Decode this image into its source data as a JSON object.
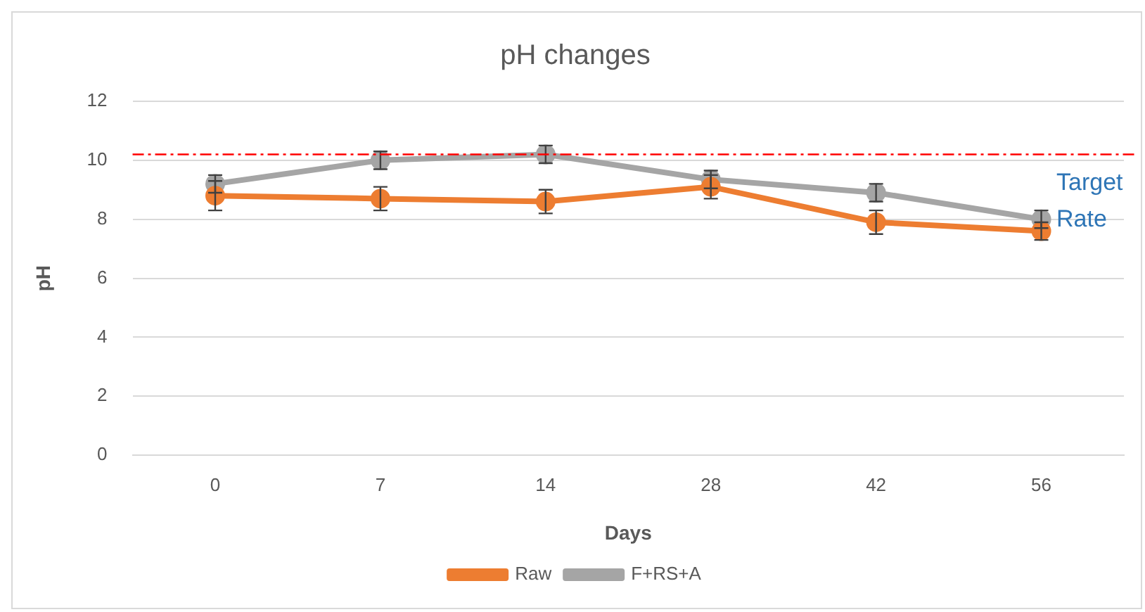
{
  "chart_data": {
    "type": "line",
    "title": "pH changes",
    "xlabel": "Days",
    "ylabel": "pH",
    "categories": [
      "0",
      "7",
      "14",
      "28",
      "42",
      "56"
    ],
    "series": [
      {
        "name": "Raw",
        "color": "#ed7d31",
        "values": [
          8.8,
          8.7,
          8.6,
          9.1,
          7.9,
          7.6
        ],
        "errors": [
          0.5,
          0.4,
          0.4,
          0.4,
          0.4,
          0.3
        ]
      },
      {
        "name": "F+RS+A",
        "color": "#a5a5a5",
        "values": [
          9.2,
          10.0,
          10.2,
          9.35,
          8.9,
          8.0
        ],
        "errors": [
          0.3,
          0.3,
          0.3,
          0.3,
          0.3,
          0.3
        ]
      }
    ],
    "ylim": [
      0,
      12
    ],
    "yticks": [
      0,
      2,
      4,
      6,
      8,
      10,
      12
    ],
    "grid": "y",
    "legend": "bottom",
    "marker": "circle",
    "line_style": "solid",
    "ref_lines": [
      {
        "axis": "y",
        "value": 10.2,
        "label": "Target Rate",
        "color": "#ff0000",
        "line_style": "dashed"
      }
    ]
  }
}
